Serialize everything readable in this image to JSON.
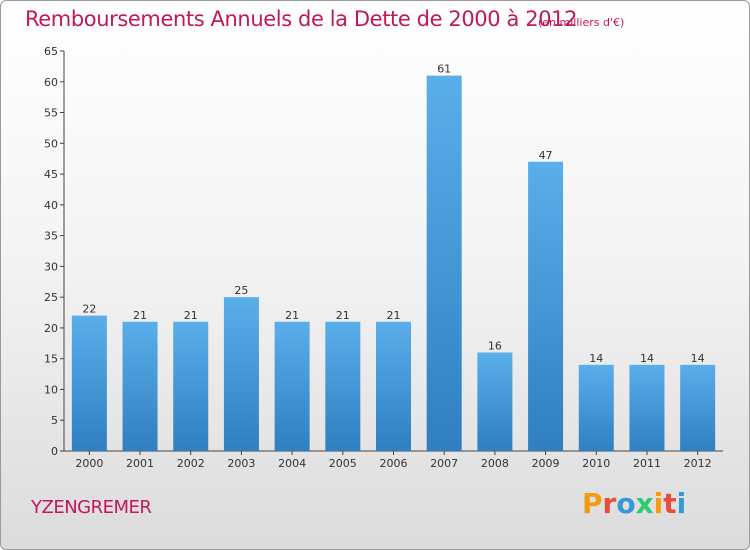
{
  "header": {
    "title": "Remboursements Annuels de la Dette de 2000 à 2012",
    "unit": "(en milliers d'€)"
  },
  "footer": {
    "town": "YZENGREMER",
    "logo": [
      "P",
      "r",
      "o",
      "x",
      "i",
      "t",
      "i"
    ]
  },
  "colors": {
    "title": "#c2185b",
    "bar_top": "#5aaeea",
    "bar_bottom": "#2f7fc1",
    "logo": [
      "#f39c12",
      "#e74c3c",
      "#3498db",
      "#2ecc71",
      "#f39c12",
      "#e74c3c",
      "#3498db"
    ]
  },
  "chart_data": {
    "type": "bar",
    "title": "Remboursements Annuels de la Dette de 2000 à 2012",
    "xlabel": "",
    "ylabel": "",
    "categories": [
      "2000",
      "2001",
      "2002",
      "2003",
      "2004",
      "2005",
      "2006",
      "2007",
      "2008",
      "2009",
      "2010",
      "2011",
      "2012"
    ],
    "values": [
      22,
      21,
      21,
      25,
      21,
      21,
      21,
      61,
      16,
      47,
      14,
      14,
      14
    ],
    "ylim": [
      0,
      65
    ],
    "yticks": [
      0,
      5,
      10,
      15,
      20,
      25,
      30,
      35,
      40,
      45,
      50,
      55,
      60,
      65
    ],
    "grid": false,
    "legend": "none"
  }
}
